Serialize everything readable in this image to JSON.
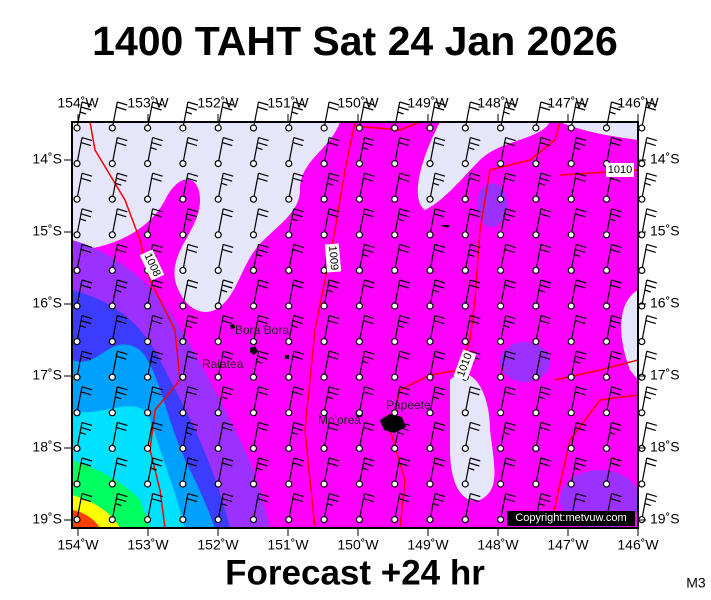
{
  "title": "1400 TAHT Sat 24 Jan 2026",
  "footer": "Forecast +24 hr",
  "model": "M3",
  "copyright": "Copyright:metvuw.com",
  "longitudes": [
    "154˚W",
    "153˚W",
    "152˚W",
    "151˚W",
    "150˚W",
    "149˚W",
    "148˚W",
    "147˚W",
    "146˚W"
  ],
  "latitudes": [
    "14˚S",
    "15˚S",
    "16˚S",
    "17˚S",
    "18˚S",
    "19˚S"
  ],
  "places": [
    "Bora Bora",
    "Raiatea",
    "Mo'orea",
    "Papeete"
  ],
  "isobars": [
    "1008",
    "1009",
    "1010",
    "1010"
  ]
}
